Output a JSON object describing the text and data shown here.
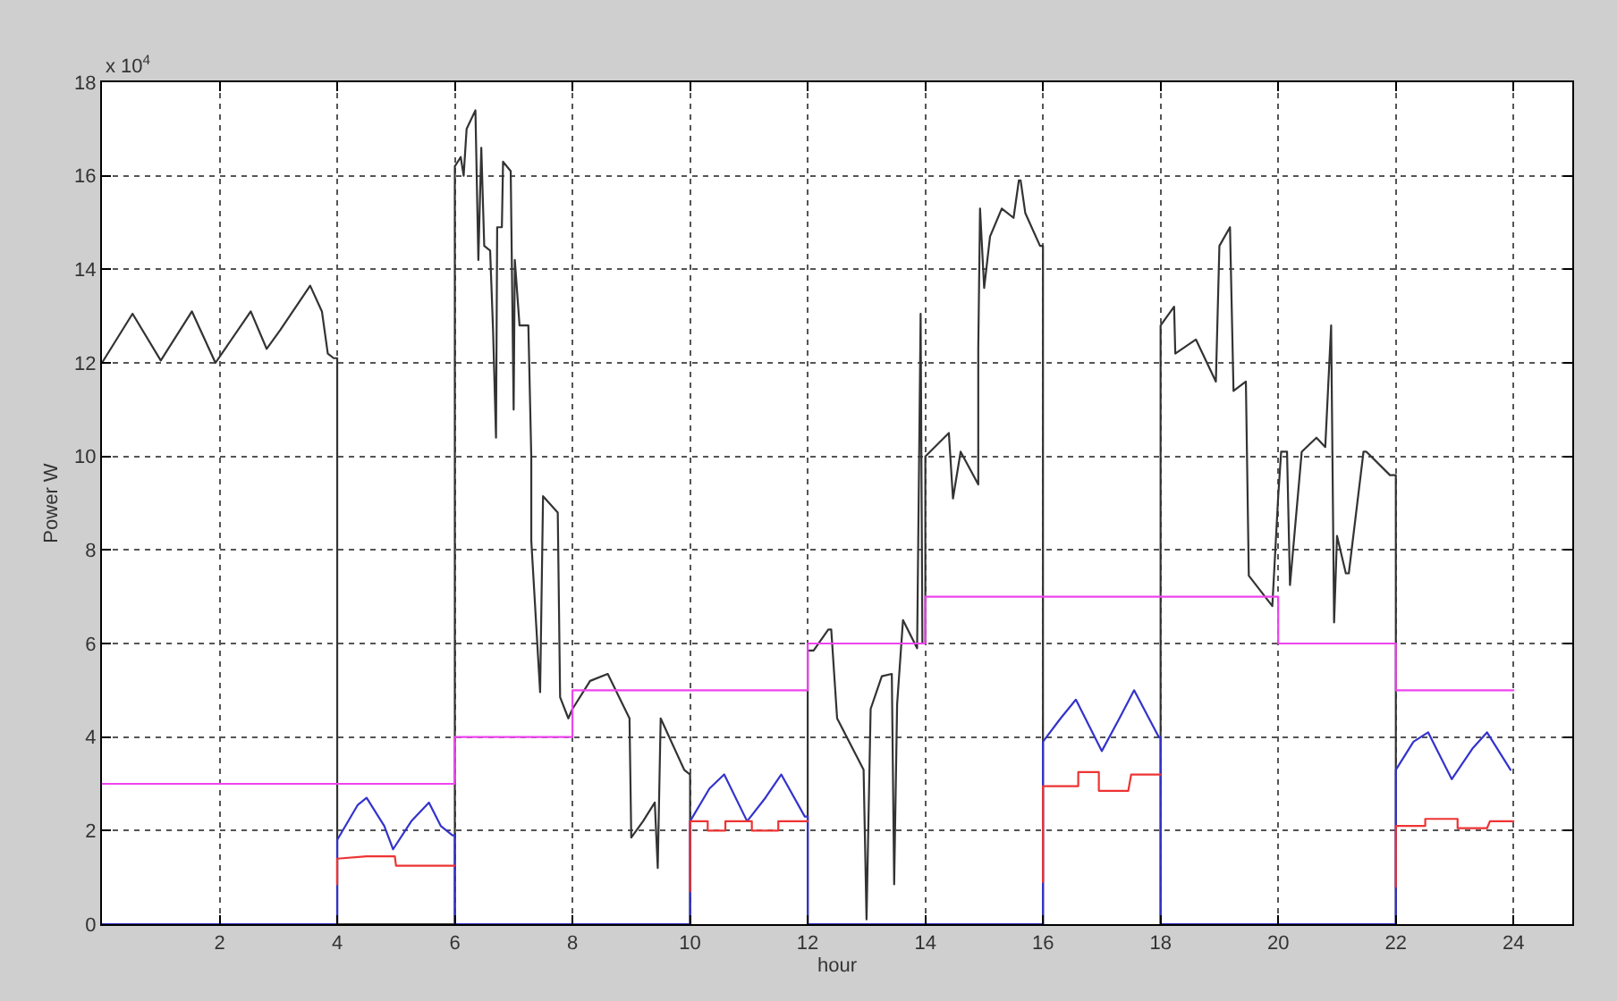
{
  "chart_data": {
    "type": "line",
    "xlabel": "hour",
    "ylabel": "Power W",
    "annotations": [
      "x 10$^{4}$"
    ],
    "xlim": [
      0,
      25
    ],
    "xticks": [
      2,
      4,
      6,
      8,
      10,
      12,
      14,
      16,
      18,
      20,
      22,
      24
    ],
    "ylim": [
      0,
      18
    ],
    "yticks": [
      0,
      2,
      4,
      6,
      8,
      10,
      12,
      14,
      16,
      18
    ],
    "grid": true,
    "line_style": "solid",
    "marker": "none",
    "series": [
      {
        "color": "#333333",
        "x": [
          0,
          0.52,
          1.0,
          1.53,
          1.93,
          2.53,
          2.8,
          3.03,
          3.54,
          3.74,
          3.84,
          3.94,
          4.0,
          4.0,
          6.0,
          6.0,
          6.1,
          6.15,
          6.2,
          6.35,
          6.4,
          6.45,
          6.5,
          6.6,
          6.65,
          6.7,
          6.72,
          6.8,
          6.82,
          6.95,
          7.0,
          7.02,
          7.1,
          7.25,
          7.3,
          7.3,
          7.45,
          7.5,
          7.75,
          7.79,
          7.93,
          8.0,
          8.3,
          8.6,
          8.97,
          9.0,
          9.2,
          9.4,
          9.45,
          9.5,
          9.9,
          10.0,
          10.0,
          null,
          12.0,
          12.0,
          12.1,
          12.35,
          12.4,
          12.5,
          12.95,
          13.0,
          13.07,
          13.26,
          13.43,
          13.47,
          13.52,
          13.62,
          13.86,
          13.92,
          13.95,
          14.0,
          14.0,
          14.4,
          14.47,
          14.6,
          14.9,
          14.9,
          14.93,
          15.0,
          15.1,
          15.3,
          15.5,
          15.59,
          15.62,
          15.7,
          15.95,
          16.0,
          16.0,
          null,
          18.0,
          18.0,
          18.23,
          18.25,
          18.6,
          18.94,
          19.0,
          19.18,
          19.24,
          19.45,
          19.5,
          19.9,
          20.0,
          20.05,
          20.15,
          20.2,
          20.4,
          20.65,
          20.8,
          20.9,
          20.95,
          21.0,
          21.15,
          21.2,
          21.45,
          21.5,
          21.9,
          22.0,
          22.0
        ],
        "values": [
          12.0,
          13.05,
          12.05,
          13.1,
          12.0,
          13.1,
          12.3,
          12.7,
          13.65,
          13.1,
          12.2,
          12.1,
          12.1,
          0,
          0,
          16.2,
          16.4,
          16.0,
          17.0,
          17.4,
          14.2,
          16.6,
          14.5,
          14.4,
          12.7,
          10.4,
          14.9,
          14.9,
          16.3,
          16.1,
          11.0,
          14.2,
          12.8,
          12.8,
          10.0,
          8.2,
          4.96,
          9.15,
          8.8,
          4.85,
          4.4,
          4.6,
          5.2,
          5.35,
          4.4,
          1.85,
          2.2,
          2.6,
          1.2,
          4.4,
          3.3,
          3.2,
          0,
          null,
          0,
          5.85,
          5.85,
          6.3,
          6.3,
          4.4,
          3.3,
          0.1,
          4.6,
          5.3,
          5.35,
          0.85,
          4.7,
          6.5,
          5.9,
          13.05,
          6.0,
          6.0,
          10.0,
          10.5,
          9.1,
          10.1,
          9.4,
          12.3,
          15.3,
          13.6,
          14.7,
          15.3,
          15.1,
          15.9,
          15.9,
          15.2,
          14.5,
          14.5,
          0,
          null,
          0,
          12.8,
          13.2,
          12.2,
          12.5,
          11.6,
          14.5,
          14.9,
          11.4,
          11.6,
          7.45,
          6.8,
          9.15,
          10.1,
          10.1,
          7.25,
          10.1,
          10.4,
          10.2,
          12.8,
          6.45,
          8.3,
          7.5,
          7.5,
          10.1,
          10.1,
          9.6,
          9.6,
          0
        ]
      },
      {
        "color": "#3333cc",
        "x": [
          0,
          4.0,
          4.0,
          4.35,
          4.5,
          4.8,
          4.95,
          5.26,
          5.56,
          5.76,
          5.96,
          6.0,
          6.0,
          10.0,
          10.0,
          10.33,
          10.58,
          10.97,
          11.28,
          11.55,
          11.95,
          12.0,
          12.0,
          16.0,
          16.0,
          16.3,
          16.56,
          17.0,
          17.3,
          17.55,
          17.97,
          18.0,
          18.0,
          22.0,
          22.0,
          22.3,
          22.55,
          22.95,
          23.3,
          23.55,
          23.95
        ],
        "values": [
          0,
          0,
          1.8,
          2.55,
          2.7,
          2.1,
          1.6,
          2.2,
          2.6,
          2.1,
          1.9,
          1.9,
          0,
          0,
          2.2,
          2.9,
          3.2,
          2.2,
          2.7,
          3.2,
          2.3,
          2.3,
          0,
          0,
          3.9,
          4.4,
          4.8,
          3.7,
          4.4,
          5.0,
          4.0,
          4.0,
          0,
          0,
          3.3,
          3.9,
          4.1,
          3.1,
          3.75,
          4.1,
          3.3
        ]
      },
      {
        "color": "#ee3333",
        "x": [
          4.0,
          4.0,
          4.5,
          4.98,
          5.0,
          6.0,
          null,
          10.0,
          10.0,
          10.3,
          10.3,
          10.6,
          10.6,
          11.05,
          11.05,
          11.5,
          11.5,
          12.0,
          null,
          16.0,
          16.0,
          16.6,
          16.6,
          16.95,
          16.95,
          17.45,
          17.5,
          18.0,
          null,
          22.0,
          22.0,
          22.5,
          22.5,
          23.05,
          23.05,
          23.55,
          23.6,
          24.0
        ],
        "values": [
          0.85,
          1.4,
          1.45,
          1.45,
          1.25,
          1.25,
          null,
          0.7,
          2.2,
          2.2,
          2.0,
          2.0,
          2.2,
          2.2,
          2.0,
          2.0,
          2.2,
          2.2,
          null,
          0.9,
          2.95,
          2.95,
          3.25,
          3.25,
          2.85,
          2.85,
          3.2,
          3.2,
          null,
          0.8,
          2.1,
          2.1,
          2.25,
          2.25,
          2.05,
          2.05,
          2.2,
          2.2
        ]
      },
      {
        "color": "#ee44ee",
        "x": [
          0,
          6,
          6,
          8,
          8,
          12,
          12,
          14,
          14,
          20,
          20,
          22,
          22,
          24
        ],
        "values": [
          3,
          3,
          4,
          4,
          5,
          5,
          6,
          6,
          7,
          7,
          6,
          6,
          5,
          5
        ]
      }
    ]
  }
}
